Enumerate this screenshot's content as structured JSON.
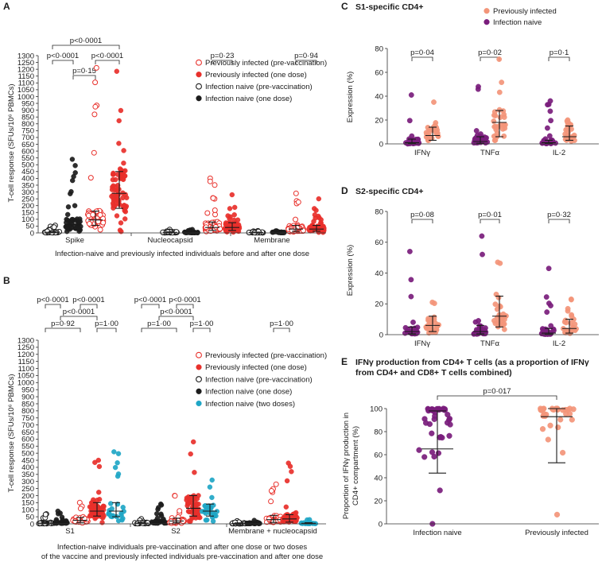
{
  "colors": {
    "red": "#e8302b",
    "black": "#1c1c1c",
    "teal": "#1fa6c6",
    "purple": "#7a1d7c",
    "salmon": "#f39579"
  },
  "chart_data": [
    {
      "id": "A",
      "panel_label": "A",
      "type": "scatter",
      "ylabel": "T-cell response (SFUs/10⁶ PBMCs)",
      "xlabel": "Infection-naive and previously infected individuals before and after one dose",
      "ylim": [
        0,
        1300
      ],
      "yticks": [
        "0",
        "50",
        "100",
        "150",
        "200",
        "250",
        "300",
        "350",
        "400",
        "450",
        "500",
        "550",
        "600",
        "650",
        "700",
        "750",
        "800",
        "850",
        "900",
        "950",
        "1000",
        "1050",
        "1100",
        "1150",
        "1200",
        "1250",
        "1300"
      ],
      "categories": [
        "Spike",
        "Nucleocapsid",
        "Membrane"
      ],
      "legend": [
        {
          "label": "Previously infected (pre-vaccination)",
          "color": "red",
          "filled": false
        },
        {
          "label": "Previously infected (one dose)",
          "color": "red",
          "filled": true
        },
        {
          "label": "Infection naive (pre-vaccination)",
          "color": "black",
          "filled": false
        },
        {
          "label": "Infection naive (one dose)",
          "color": "black",
          "filled": true
        }
      ],
      "pvalues": [
        {
          "text": "p<0·0001",
          "level": 0,
          "from": 0,
          "to": 3
        },
        {
          "text": "p<0·0001",
          "level": 1,
          "from": 0,
          "to": 1
        },
        {
          "text": "p<0·0001",
          "level": 1,
          "from": 2,
          "to": 3
        },
        {
          "text": "p=0·15",
          "level": 2,
          "from": 1,
          "to": 2
        },
        {
          "text": "p=0·23",
          "level": 1,
          "from": 6,
          "to": 7
        },
        {
          "text": "p=0·94",
          "level": 1,
          "from": 10,
          "to": 11
        }
      ],
      "groups": [
        {
          "name": "Spike – infection naive (pre-vaccination)",
          "slot": 0,
          "color": "black",
          "filled": false,
          "median": 5,
          "q1": 2,
          "q3": 10,
          "n": 45,
          "max": 55
        },
        {
          "name": "Spike – infection naive (one dose)",
          "slot": 1,
          "color": "black",
          "filled": true,
          "median": 60,
          "q1": 25,
          "q3": 100,
          "n": 50,
          "max": 540
        },
        {
          "name": "Spike – previously infected (pre-vaccination)",
          "slot": 2,
          "color": "red",
          "filled": false,
          "median": 95,
          "q1": 55,
          "q3": 160,
          "n": 50,
          "max": 1210
        },
        {
          "name": "Spike – previously infected (one dose)",
          "slot": 3,
          "color": "red",
          "filled": true,
          "median": 290,
          "q1": 180,
          "q3": 450,
          "n": 70,
          "max": 1185
        },
        {
          "name": "Nucleocapsid – infection naive (pre-vaccination)",
          "slot": 4,
          "color": "black",
          "filled": false,
          "median": 4,
          "q1": 1,
          "q3": 8,
          "n": 35,
          "max": 25
        },
        {
          "name": "Nucleocapsid – infection naive (one dose)",
          "slot": 5,
          "color": "black",
          "filled": true,
          "median": 4,
          "q1": 1,
          "q3": 8,
          "n": 35,
          "max": 25
        },
        {
          "name": "Nucleocapsid – previously infected (pre-vaccination)",
          "slot": 6,
          "color": "red",
          "filled": false,
          "median": 40,
          "q1": 18,
          "q3": 80,
          "n": 60,
          "max": 400
        },
        {
          "name": "Nucleocapsid – previously infected (one dose)",
          "slot": 7,
          "color": "red",
          "filled": true,
          "median": 40,
          "q1": 18,
          "q3": 75,
          "n": 60,
          "max": 280
        },
        {
          "name": "Membrane – infection naive (pre-vaccination)",
          "slot": 8,
          "color": "black",
          "filled": false,
          "median": 3,
          "q1": 1,
          "q3": 6,
          "n": 30,
          "max": 15
        },
        {
          "name": "Membrane – infection naive (one dose)",
          "slot": 9,
          "color": "black",
          "filled": true,
          "median": 3,
          "q1": 1,
          "q3": 6,
          "n": 30,
          "max": 15
        },
        {
          "name": "Membrane – previously infected (pre-vaccination)",
          "slot": 10,
          "color": "red",
          "filled": false,
          "median": 28,
          "q1": 12,
          "q3": 55,
          "n": 55,
          "max": 290
        },
        {
          "name": "Membrane – previously infected (one dose)",
          "slot": 11,
          "color": "red",
          "filled": true,
          "median": 28,
          "q1": 12,
          "q3": 55,
          "n": 55,
          "max": 250
        }
      ]
    },
    {
      "id": "B",
      "panel_label": "B",
      "type": "scatter",
      "ylabel": "T-cell response (SFUs/10⁶ PBMCs)",
      "xlabel": [
        "Infection-naive individuals pre-vaccination and after one dose or two doses",
        "of the vaccine and previously infected individuals pre-vaccination and after one dose"
      ],
      "ylim": [
        0,
        1300
      ],
      "yticks": [
        "0",
        "50",
        "100",
        "150",
        "200",
        "250",
        "300",
        "350",
        "400",
        "450",
        "500",
        "550",
        "600",
        "650",
        "700",
        "750",
        "800",
        "850",
        "900",
        "950",
        "1000",
        "1050",
        "1100",
        "1150",
        "1200",
        "1250",
        "1300"
      ],
      "categories": [
        "S1",
        "S2",
        "Membrane + nucleocapsid"
      ],
      "legend": [
        {
          "label": "Previously infected (pre-vaccination)",
          "color": "red",
          "filled": false
        },
        {
          "label": "Previously infected (one dose)",
          "color": "red",
          "filled": true
        },
        {
          "label": "Infection naive (pre-vaccination)",
          "color": "black",
          "filled": false
        },
        {
          "label": "Infection naive (one dose)",
          "color": "black",
          "filled": true
        },
        {
          "label": "Infection naive (two doses)",
          "color": "teal",
          "filled": true
        }
      ],
      "pvalues": [
        {
          "text": "p<0·0001",
          "level": 0,
          "from": 0,
          "to": 1
        },
        {
          "text": "p<0·0001",
          "level": 0,
          "from": 2,
          "to": 3
        },
        {
          "text": "p<0·0001",
          "level": 1,
          "from": 1,
          "to": 3
        },
        {
          "text": "p=0·92",
          "level": 2,
          "from": 0,
          "to": 2
        },
        {
          "text": "p=1·00",
          "level": 2,
          "from": 3,
          "to": 4
        },
        {
          "text": "p<0·0001",
          "level": 0,
          "from": 5,
          "to": 6
        },
        {
          "text": "p<0·0001",
          "level": 0,
          "from": 7,
          "to": 8
        },
        {
          "text": "p<0·0001",
          "level": 1,
          "from": 6,
          "to": 8
        },
        {
          "text": "p=1·00",
          "level": 2,
          "from": 5,
          "to": 7
        },
        {
          "text": "p=1·00",
          "level": 2,
          "from": 8,
          "to": 9
        },
        {
          "text": "p=1·00",
          "level": 2,
          "from": 12,
          "to": 13
        }
      ],
      "groups": [
        {
          "name": "S1 – infection naive (pre-vaccination)",
          "slot": 0,
          "color": "black",
          "filled": false,
          "median": 5,
          "q1": 2,
          "q3": 12,
          "n": 35,
          "max": 70
        },
        {
          "name": "S1 – infection naive (one dose)",
          "slot": 1,
          "color": "black",
          "filled": true,
          "median": 10,
          "q1": 4,
          "q3": 20,
          "n": 35,
          "max": 90
        },
        {
          "name": "S1 – previously infected (pre-vaccination)",
          "slot": 2,
          "color": "red",
          "filled": false,
          "median": 25,
          "q1": 10,
          "q3": 45,
          "n": 35,
          "max": 150
        },
        {
          "name": "S1 – previously infected (one dose)",
          "slot": 3,
          "color": "red",
          "filled": true,
          "median": 90,
          "q1": 55,
          "q3": 150,
          "n": 55,
          "max": 450
        },
        {
          "name": "S1 – infection naive (two doses)",
          "slot": 4,
          "color": "teal",
          "filled": true,
          "median": 90,
          "q1": 50,
          "q3": 150,
          "n": 25,
          "max": 510
        },
        {
          "name": "S2 – infection naive (pre-vaccination)",
          "slot": 5,
          "color": "black",
          "filled": false,
          "median": 5,
          "q1": 2,
          "q3": 10,
          "n": 30,
          "max": 35
        },
        {
          "name": "S2 – infection naive (one dose)",
          "slot": 6,
          "color": "black",
          "filled": true,
          "median": 10,
          "q1": 4,
          "q3": 20,
          "n": 35,
          "max": 140
        },
        {
          "name": "S2 – previously infected (pre-vaccination)",
          "slot": 7,
          "color": "red",
          "filled": false,
          "median": 20,
          "q1": 8,
          "q3": 40,
          "n": 35,
          "max": 200
        },
        {
          "name": "S2 – previously infected (one dose)",
          "slot": 8,
          "color": "red",
          "filled": true,
          "median": 110,
          "q1": 55,
          "q3": 200,
          "n": 55,
          "max": 580
        },
        {
          "name": "S2 – infection naive (two doses)",
          "slot": 9,
          "color": "teal",
          "filled": true,
          "median": 90,
          "q1": 55,
          "q3": 140,
          "n": 25,
          "max": 310
        },
        {
          "name": "Membrane + nucleocapsid – infection naive (pre-vaccination)",
          "slot": 10,
          "color": "black",
          "filled": false,
          "median": 3,
          "q1": 1,
          "q3": 7,
          "n": 30,
          "max": 20
        },
        {
          "name": "Membrane + nucleocapsid – infection naive (one dose)",
          "slot": 11,
          "color": "black",
          "filled": true,
          "median": 4,
          "q1": 1,
          "q3": 8,
          "n": 30,
          "max": 25
        },
        {
          "name": "Membrane + nucleocapsid – previously infected (pre-vaccination)",
          "slot": 12,
          "color": "red",
          "filled": false,
          "median": 30,
          "q1": 10,
          "q3": 60,
          "n": 45,
          "max": 280
        },
        {
          "name": "Membrane + nucleocapsid – previously infected (one dose)",
          "slot": 13,
          "color": "red",
          "filled": true,
          "median": 35,
          "q1": 12,
          "q3": 65,
          "n": 50,
          "max": 430
        },
        {
          "name": "Membrane + nucleocapsid – infection naive (two doses)",
          "slot": 14,
          "color": "teal",
          "filled": true,
          "median": 4,
          "q1": 1,
          "q3": 8,
          "n": 20,
          "max": 30
        }
      ]
    },
    {
      "id": "C",
      "panel_label": "C",
      "title": "S1-specific CD4+",
      "type": "scatter",
      "ylabel": "Expression (%)",
      "ylim": [
        0,
        80
      ],
      "yticks": [
        "0",
        "20",
        "40",
        "60",
        "80"
      ],
      "categories": [
        "IFNγ",
        "TNFα",
        "IL-2"
      ],
      "legend": [
        {
          "label": "Previously infected",
          "color": "salmon",
          "filled": true
        },
        {
          "label": "Infection naive",
          "color": "purple",
          "filled": true
        }
      ],
      "pvalues": [
        {
          "text": "p=0·04",
          "from": 0,
          "to": 1
        },
        {
          "text": "p=0·02",
          "from": 2,
          "to": 3
        },
        {
          "text": "p=0·1",
          "from": 4,
          "to": 5
        }
      ],
      "groups": [
        {
          "name": "IFNγ – infection naive",
          "slot": 0,
          "color": "purple",
          "median": 1,
          "q1": 0.3,
          "q3": 4,
          "n": 30,
          "max": 41
        },
        {
          "name": "IFNγ – previously infected",
          "slot": 1,
          "color": "salmon",
          "median": 7,
          "q1": 3,
          "q3": 14,
          "n": 28,
          "max": 35
        },
        {
          "name": "TNFα – infection naive",
          "slot": 2,
          "color": "purple",
          "median": 2,
          "q1": 0.5,
          "q3": 6,
          "n": 30,
          "max": 48
        },
        {
          "name": "TNFα – previously infected",
          "slot": 3,
          "color": "salmon",
          "median": 18,
          "q1": 6,
          "q3": 28,
          "n": 28,
          "max": 71
        },
        {
          "name": "IL-2 – infection naive",
          "slot": 4,
          "color": "purple",
          "median": 1,
          "q1": 0.3,
          "q3": 3,
          "n": 30,
          "max": 36
        },
        {
          "name": "IL-2 – previously infected",
          "slot": 5,
          "color": "salmon",
          "median": 6,
          "q1": 3,
          "q3": 15,
          "n": 28,
          "max": 20
        }
      ]
    },
    {
      "id": "D",
      "panel_label": "D",
      "title": "S2-specific CD4+",
      "type": "scatter",
      "ylabel": "Expression (%)",
      "ylim": [
        0,
        80
      ],
      "yticks": [
        "0",
        "20",
        "40",
        "60",
        "80"
      ],
      "categories": [
        "IFNγ",
        "TNFα",
        "IL-2"
      ],
      "pvalues": [
        {
          "text": "p=0·08",
          "from": 0,
          "to": 1
        },
        {
          "text": "p=0·01",
          "from": 2,
          "to": 3
        },
        {
          "text": "p=0·32",
          "from": 4,
          "to": 5
        }
      ],
      "groups": [
        {
          "name": "IFNγ – infection naive",
          "slot": 0,
          "color": "purple",
          "median": 2,
          "q1": 0.5,
          "q3": 5,
          "n": 30,
          "max": 54
        },
        {
          "name": "IFNγ – previously infected",
          "slot": 1,
          "color": "salmon",
          "median": 6,
          "q1": 2,
          "q3": 12,
          "n": 28,
          "max": 21
        },
        {
          "name": "TNFα – infection naive",
          "slot": 2,
          "color": "purple",
          "median": 2,
          "q1": 0.5,
          "q3": 6,
          "n": 30,
          "max": 64
        },
        {
          "name": "TNFα – previously infected",
          "slot": 3,
          "color": "salmon",
          "median": 12,
          "q1": 5,
          "q3": 25,
          "n": 28,
          "max": 47
        },
        {
          "name": "IL-2 – infection naive",
          "slot": 4,
          "color": "purple",
          "median": 1,
          "q1": 0.3,
          "q3": 4,
          "n": 30,
          "max": 43
        },
        {
          "name": "IL-2 – previously infected",
          "slot": 5,
          "color": "salmon",
          "median": 4,
          "q1": 1,
          "q3": 10,
          "n": 28,
          "max": 23
        }
      ]
    },
    {
      "id": "E",
      "panel_label": "E",
      "title": [
        "IFNγ production from CD4+ T cells (as a proportion of IFNγ",
        "from CD4+ and CD8+ T cells combined)"
      ],
      "type": "scatter",
      "ylabel": [
        "Proportion of IFNγ production in",
        "CD4+ compartment (%)"
      ],
      "ylim": [
        0,
        100
      ],
      "yticks": [
        "0",
        "20",
        "40",
        "60",
        "80",
        "100"
      ],
      "categories": [
        "Infection naive",
        "Previously infected"
      ],
      "pvalues": [
        {
          "text": "p=0·017",
          "from": 0,
          "to": 1
        }
      ],
      "groups": [
        {
          "name": "Infection naive",
          "slot": 0,
          "color": "purple",
          "median": 65,
          "q1": 44,
          "q3": 98,
          "n": 40,
          "min": 0,
          "max": 100
        },
        {
          "name": "Previously infected",
          "slot": 1,
          "color": "salmon",
          "median": 93,
          "q1": 53,
          "q3": 100,
          "n": 35,
          "min": 8,
          "max": 100
        }
      ]
    }
  ]
}
